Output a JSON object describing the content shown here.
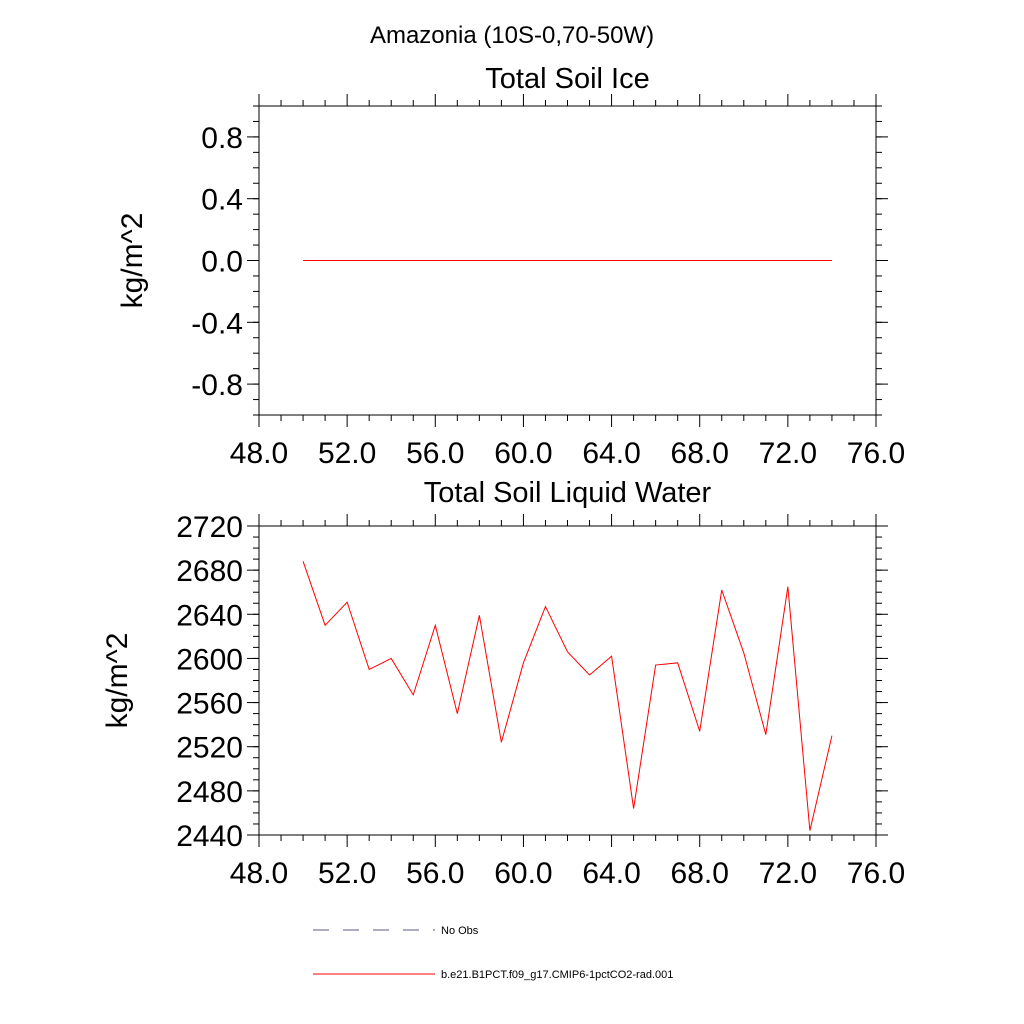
{
  "figure": {
    "title": "Amazonia (10S-0,70-50W)"
  },
  "chart_data": [
    {
      "type": "line",
      "title": "Total Soil Ice",
      "xlabel": "",
      "ylabel": "kg/m^2",
      "xlim": [
        48.0,
        76.0
      ],
      "ylim": [
        -1.0,
        1.0
      ],
      "xticks": [
        "48.0",
        "52.0",
        "56.0",
        "60.0",
        "64.0",
        "68.0",
        "72.0",
        "76.0"
      ],
      "yticks": [
        "0.8",
        "0.4",
        "0.0",
        "-0.4",
        "-0.8"
      ],
      "ytick_values": [
        0.8,
        0.4,
        0.0,
        -0.4,
        -0.8
      ],
      "grid": false,
      "series": [
        {
          "name": "b.e21.B1PCT.f09_g17.CMIP6-1pctCO2-rad.001",
          "color": "#ff0000",
          "x": [
            50,
            51,
            52,
            53,
            54,
            55,
            56,
            57,
            58,
            59,
            60,
            61,
            62,
            63,
            64,
            65,
            66,
            67,
            68,
            69,
            70,
            71,
            72,
            73,
            74
          ],
          "values": [
            0,
            0,
            0,
            0,
            0,
            0,
            0,
            0,
            0,
            0,
            0,
            0,
            0,
            0,
            0,
            0,
            0,
            0,
            0,
            0,
            0,
            0,
            0,
            0,
            0
          ]
        }
      ]
    },
    {
      "type": "line",
      "title": "Total Soil Liquid Water",
      "xlabel": "",
      "ylabel": "kg/m^2",
      "xlim": [
        48.0,
        76.0
      ],
      "ylim": [
        2440,
        2720
      ],
      "xticks": [
        "48.0",
        "52.0",
        "56.0",
        "60.0",
        "64.0",
        "68.0",
        "72.0",
        "76.0"
      ],
      "yticks": [
        "2720",
        "2680",
        "2640",
        "2600",
        "2560",
        "2520",
        "2480",
        "2440"
      ],
      "ytick_values": [
        2720,
        2680,
        2640,
        2600,
        2560,
        2520,
        2480,
        2440
      ],
      "grid": false,
      "series": [
        {
          "name": "b.e21.B1PCT.f09_g17.CMIP6-1pctCO2-rad.001",
          "color": "#ff0000",
          "x": [
            50,
            51,
            52,
            53,
            54,
            55,
            56,
            57,
            58,
            59,
            60,
            61,
            62,
            63,
            64,
            65,
            66,
            67,
            68,
            69,
            70,
            71,
            72,
            73,
            74
          ],
          "values": [
            2688,
            2630,
            2651,
            2590,
            2600,
            2567,
            2630,
            2550,
            2639,
            2524,
            2596,
            2647,
            2606,
            2585,
            2602,
            2464,
            2594,
            2596,
            2534,
            2662,
            2605,
            2531,
            2665,
            2444,
            2530
          ]
        }
      ]
    }
  ],
  "legend": {
    "items": [
      {
        "label": "No Obs",
        "style": "dashed",
        "color": "#5a5a8a"
      },
      {
        "label": "b.e21.B1PCT.f09_g17.CMIP6-1pctCO2-rad.001",
        "style": "solid",
        "color": "#ff0000"
      }
    ]
  }
}
